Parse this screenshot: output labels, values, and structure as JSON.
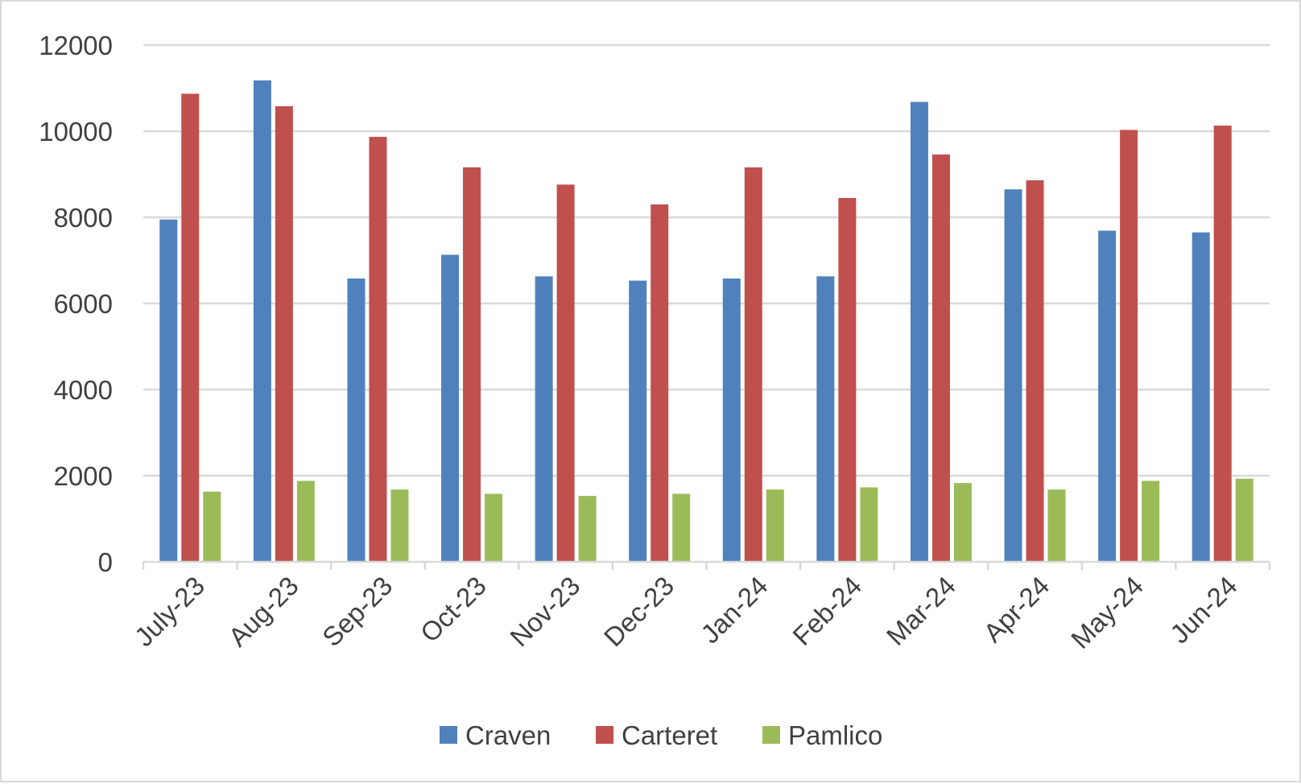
{
  "chart_data": {
    "type": "bar",
    "title": "",
    "xlabel": "",
    "ylabel": "",
    "categories": [
      "July-23",
      "Aug-23",
      "Sep-23",
      "Oct-23",
      "Nov-23",
      "Dec-23",
      "Jan-24",
      "Feb-24",
      "Mar-24",
      "Apr-24",
      "May-24",
      "Jun-24"
    ],
    "series": [
      {
        "name": "Craven",
        "color": "#4f81bd",
        "values": [
          7950,
          11180,
          6580,
          7130,
          6630,
          6530,
          6580,
          6630,
          10680,
          8650,
          7690,
          7650
        ]
      },
      {
        "name": "Carteret",
        "color": "#c0504d",
        "values": [
          10870,
          10580,
          9870,
          9160,
          8760,
          8300,
          9160,
          8450,
          9460,
          8860,
          10030,
          10130
        ]
      },
      {
        "name": "Pamlico",
        "color": "#9bbb59",
        "values": [
          1630,
          1880,
          1680,
          1580,
          1530,
          1580,
          1680,
          1730,
          1830,
          1680,
          1880,
          1930
        ]
      }
    ],
    "ylim": [
      0,
      12000
    ],
    "yticks": [
      "0",
      "2000",
      "4000",
      "6000",
      "8000",
      "10000",
      "12000"
    ],
    "grid": true,
    "legend_position": "bottom"
  }
}
